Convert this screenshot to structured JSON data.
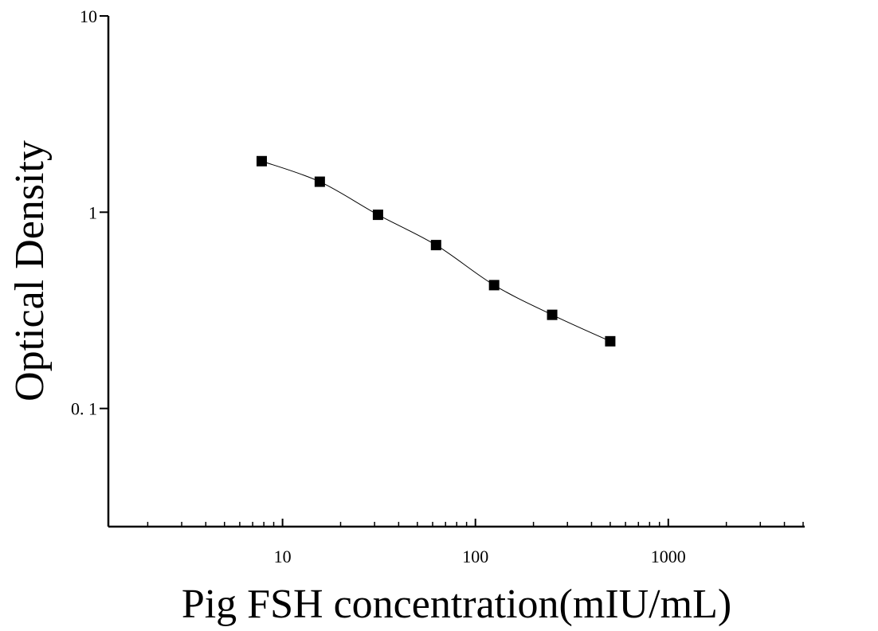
{
  "chart_data": {
    "type": "scatter",
    "x_label": "Pig FSH concentration(mIU/mL)",
    "y_label": "Optical Density",
    "x": [
      7.8,
      15.6,
      31.25,
      62.5,
      125,
      250,
      500
    ],
    "values": [
      1.82,
      1.43,
      0.97,
      0.68,
      0.425,
      0.3,
      0.22
    ],
    "color": "#000000",
    "fit_line": true,
    "xscale": "log",
    "yscale": "log",
    "xlim": [
      1.25,
      5000
    ],
    "ylim": [
      0.025,
      10
    ],
    "xticks": [
      10,
      100,
      1000
    ],
    "xminorticks": [
      2,
      3,
      4,
      5,
      6,
      7,
      8,
      9,
      20,
      30,
      40,
      50,
      60,
      70,
      80,
      90,
      200,
      300,
      400,
      500,
      600,
      700,
      800,
      900,
      2000,
      3000,
      4000,
      5000
    ],
    "yticks": [
      {
        "value": 0.1,
        "label": "0. 1"
      },
      1,
      10
    ]
  }
}
